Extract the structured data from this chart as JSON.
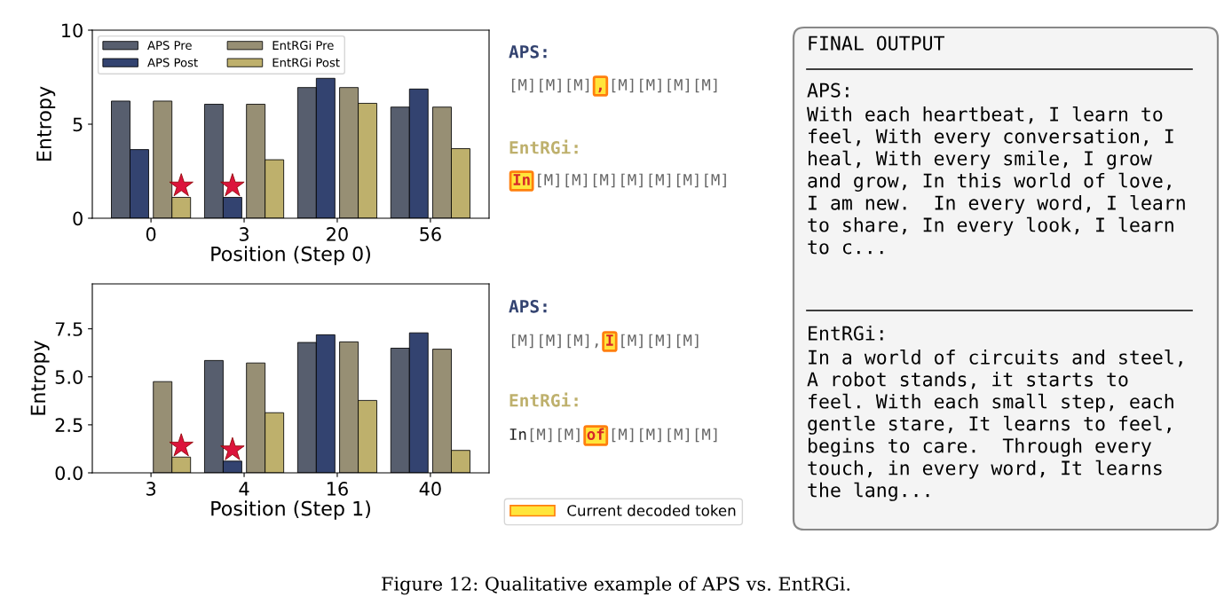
{
  "chart_data": [
    {
      "type": "bar",
      "categories": [
        "0",
        "3",
        "20",
        "56"
      ],
      "xlabel": "Position (Step 0)",
      "ylabel": "Entropy",
      "ylim": [
        0,
        10
      ],
      "yticks": [
        0,
        5,
        10
      ],
      "legend": "top left",
      "grid": false,
      "series": [
        {
          "name": "APS Pre",
          "color": "#575e6e",
          "values": [
            6.23,
            6.06,
            6.95,
            5.91
          ]
        },
        {
          "name": "APS Post",
          "color": "#334370",
          "values": [
            3.65,
            1.11,
            7.44,
            6.87
          ]
        },
        {
          "name": "EntRGi Pre",
          "color": "#978f74",
          "values": [
            6.23,
            6.06,
            6.95,
            5.91
          ]
        },
        {
          "name": "EntRGi Post",
          "color": "#beb06c",
          "values": [
            1.11,
            3.11,
            6.11,
            3.7
          ]
        },
        {
          "type": "scatter",
          "marker": "star",
          "color": "#dc143c",
          "x": [
            "0",
            "3"
          ],
          "values": [
            1.72,
            1.72
          ]
        }
      ]
    },
    {
      "type": "bar",
      "categories": [
        "3",
        "4",
        "16",
        "40"
      ],
      "xlabel": "Position (Step 1)",
      "ylabel": "Entropy",
      "ylim": [
        0,
        9.84
      ],
      "yticks": [
        {
          "value": 0,
          "label": "0.0"
        },
        {
          "value": 2.5,
          "label": "2.5"
        },
        {
          "value": 5,
          "label": "5.0"
        },
        {
          "value": 7.5,
          "label": "7.5"
        }
      ],
      "legend": false,
      "grid": false,
      "series": [
        {
          "color": "#575e6e",
          "values": [
            null,
            5.85,
            6.79,
            6.49
          ]
        },
        {
          "color": "#334370",
          "values": [
            null,
            0.61,
            7.19,
            7.29
          ]
        },
        {
          "color": "#978f74",
          "values": [
            4.75,
            5.72,
            6.82,
            6.44
          ]
        },
        {
          "color": "#beb06c",
          "values": [
            0.82,
            3.13,
            3.77,
            1.17
          ]
        },
        {
          "type": "scatter",
          "marker": "star",
          "color": "#dc143c",
          "x": [
            "3",
            "4"
          ],
          "values": [
            1.4,
            1.2
          ]
        }
      ]
    },
    {
      "type": "other",
      "annotations": [
        "APS:",
        "[M][M][M]",
        ",",
        "[M][M][M][M]",
        "EntRGi:",
        "In",
        "[M][M][M][M][M][M][M]",
        "APS:",
        "[M][M][M],",
        "I",
        "[M][M][M]",
        "EntRGi:",
        "In",
        "[M][M]",
        "of",
        "[M][M][M][M]",
        "Current decoded token"
      ]
    },
    {
      "type": "other",
      "title": "FINAL OUTPUT",
      "annotations": [
        "APS:",
        "With each heartbeat, I learn to\nfeel, With every conversation, I\nheal, With every smile, I grow\nand grow, In this world of love,\nI am new.  In every word, I learn\nto share, In every look, I learn\nto c...",
        "EntRGi:",
        "In a world of circuits and steel,\nA robot stands, it starts to\nfeel. With each small step, each\ngentle stare, It learns to feel,\nbegins to care.  Through every\ntouch, in every word, It learns\nthe lang...",
        "Figure 12: Qualitative example of APS vs. EntRGi."
      ]
    }
  ]
}
